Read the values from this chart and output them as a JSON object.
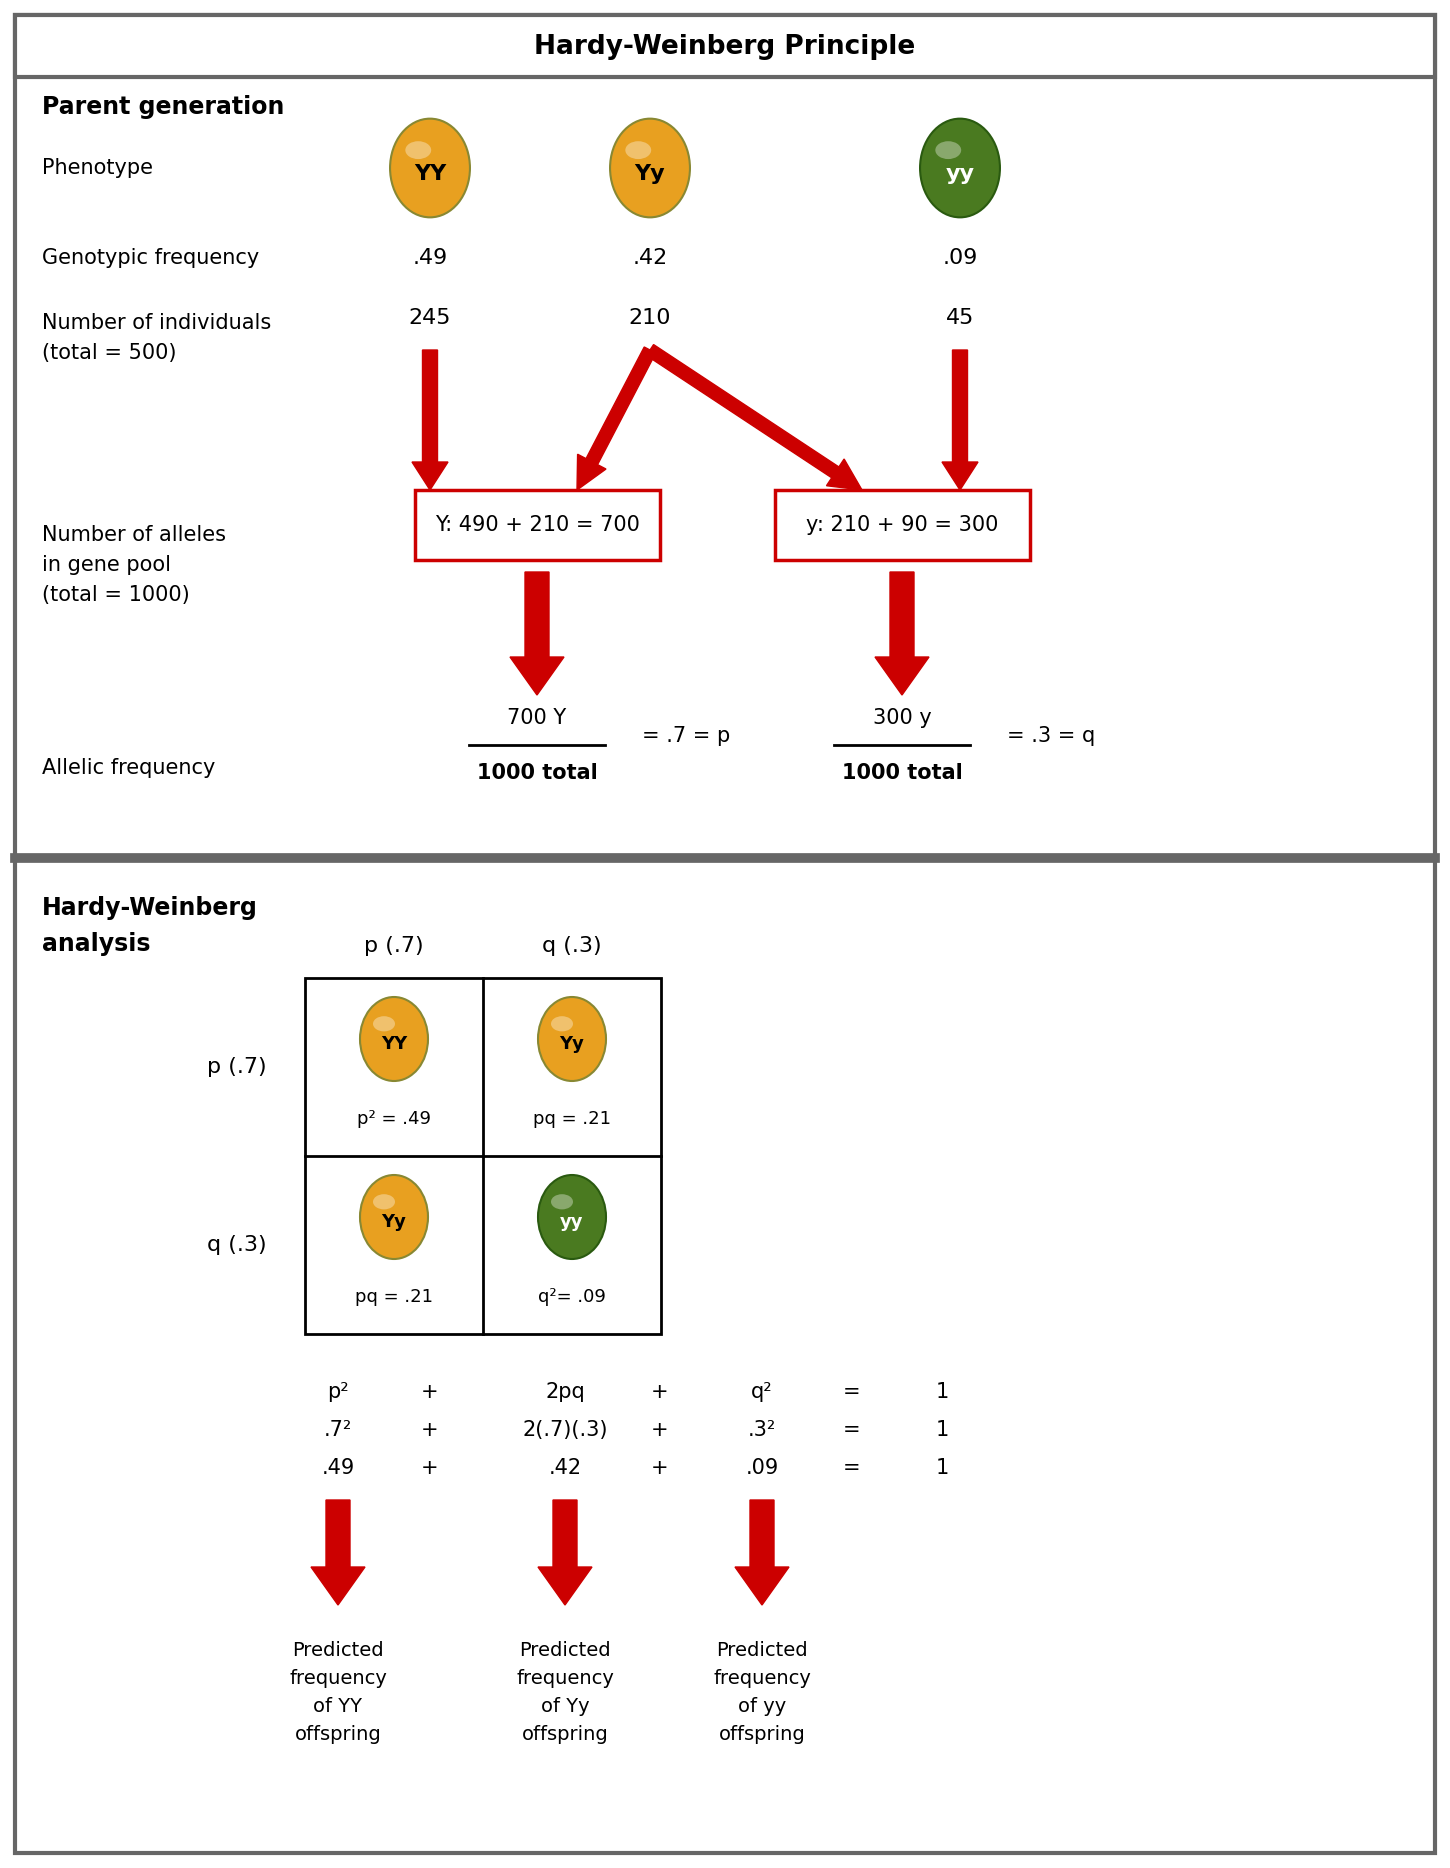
{
  "title": "Hardy-Weinberg Principle",
  "bg_color": "#ffffff",
  "border_color": "#666666",
  "section1_label": "Parent generation",
  "section2_label": "Hardy-Weinberg\nanalysis",
  "phenotype_label": "Phenotype",
  "genotypic_freq_label": "Genotypic frequency",
  "num_individuals_label": "Number of individuals\n(total = 500)",
  "num_alleles_label": "Number of alleles\nin gene pool\n(total = 1000)",
  "allelic_freq_label": "Allelic frequency",
  "genotypes": [
    "YY",
    "Yy",
    "yy"
  ],
  "genotype_colors": [
    "#E8A020",
    "#E8A020",
    "#4A7A20"
  ],
  "genotype_text_colors": [
    "#000000",
    "#000000",
    "#ffffff"
  ],
  "frequencies": [
    ".49",
    ".42",
    ".09"
  ],
  "individuals": [
    "245",
    "210",
    "45"
  ],
  "allele_box1_text": "Y: 490 + 210 = 700",
  "allele_box2_text": "y: 210 + 90 = 300",
  "allele_box_color": "#cc0000",
  "allelic_freq1_num": "700 Y",
  "allelic_freq1_den": "1000 total",
  "allelic_freq1_eq": "= .7 = p",
  "allelic_freq2_num": "300 y",
  "allelic_freq2_den": "1000 total",
  "allelic_freq2_eq": "= .3 = q",
  "pq_header": [
    "p (.7)",
    "q (.3)"
  ],
  "row_headers": [
    "p (.7)",
    "q (.3)"
  ],
  "punnett_labels": [
    "YY",
    "Yy",
    "Yy",
    "yy"
  ],
  "punnett_colors": [
    "#E8A020",
    "#E8A020",
    "#E8A020",
    "#4A7A20"
  ],
  "punnett_text_colors": [
    "#000000",
    "#000000",
    "#000000",
    "#ffffff"
  ],
  "punnett_values": [
    "p² = .49",
    "pq = .21",
    "pq = .21",
    "q²= .09"
  ],
  "eq_line1": [
    "p²",
    "+",
    "2pq",
    "+",
    "q²",
    "=",
    "1"
  ],
  "eq_line2": [
    ".7²",
    "+",
    "2(.7)(.3)",
    "+",
    ".3²",
    "=",
    "1"
  ],
  "eq_line3": [
    ".49",
    "+",
    ".42",
    "+",
    ".09",
    "=",
    "1"
  ],
  "predicted_labels": [
    "Predicted\nfrequency\nof YY\noffspring",
    "Predicted\nfrequency\nof Yy\noffspring",
    "Predicted\nfrequency\nof yy\noffspring"
  ],
  "red_arrow_color": "#cc0000",
  "text_color": "#000000"
}
